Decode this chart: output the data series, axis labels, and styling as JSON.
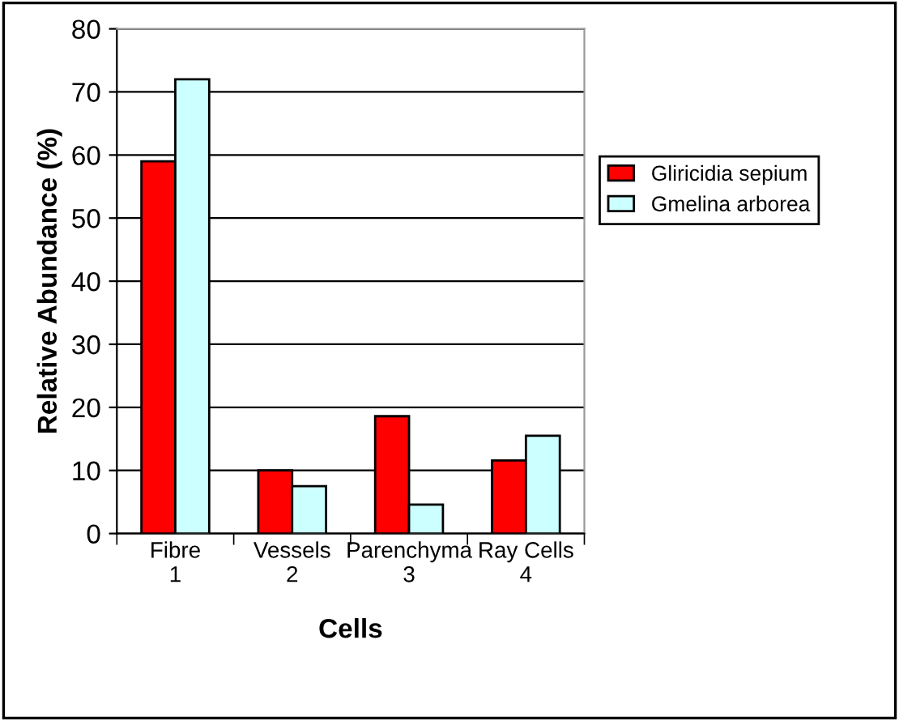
{
  "chart_data": {
    "type": "bar",
    "xlabel": "Cells",
    "ylabel": "Relative Abundance (%)",
    "categories": [
      "Fibre\n1",
      "Vessels\n2",
      "Parenchyma\n3",
      "Ray Cells\n4"
    ],
    "series": [
      {
        "name": "Gliricidia sepium",
        "color": "#ff0000",
        "values": [
          59,
          10,
          18.6,
          11.6
        ]
      },
      {
        "name": "Gmelina arborea",
        "color": "#ccffff",
        "values": [
          72,
          7.5,
          4.6,
          15.5
        ]
      }
    ],
    "ylim": [
      0,
      80
    ],
    "yticks": [
      0,
      10,
      20,
      30,
      40,
      50,
      60,
      70,
      80
    ],
    "grid": "y",
    "legend": "right"
  }
}
